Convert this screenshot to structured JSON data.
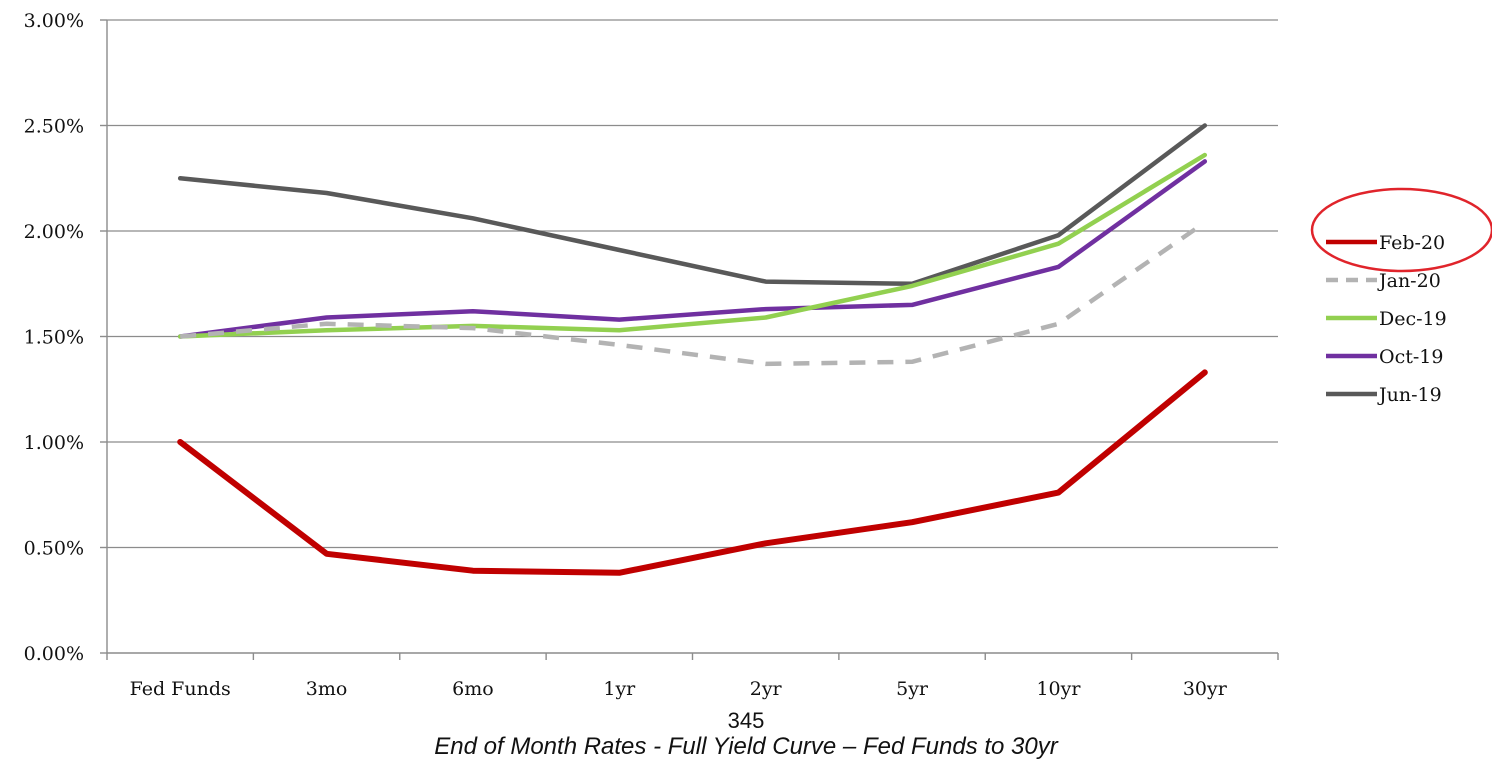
{
  "page_number": "345",
  "caption": "End of Month Rates - Full Yield Curve – Fed Funds to 30yr",
  "highlight": {
    "series": "Feb-20",
    "color": "#e0242b"
  },
  "chart_data": {
    "type": "line",
    "categories": [
      "Fed Funds",
      "3mo",
      "6mo",
      "1yr",
      "2yr",
      "5yr",
      "10yr",
      "30yr"
    ],
    "y_ticks": [
      "0.00%",
      "0.50%",
      "1.00%",
      "1.50%",
      "2.00%",
      "2.50%",
      "3.00%"
    ],
    "ylim": [
      0,
      3
    ],
    "grid": true,
    "legend_position": "right",
    "series": [
      {
        "name": "Feb-20",
        "color": "#c00000",
        "dash": false,
        "values": [
          1.0,
          0.47,
          0.39,
          0.38,
          0.52,
          0.62,
          0.76,
          1.33
        ]
      },
      {
        "name": "Jan-20",
        "color": "#b3b3b3",
        "dash": true,
        "values": [
          1.5,
          1.56,
          1.54,
          1.46,
          1.37,
          1.38,
          1.56,
          2.04
        ]
      },
      {
        "name": "Dec-19",
        "color": "#92d050",
        "dash": false,
        "values": [
          1.5,
          1.53,
          1.55,
          1.53,
          1.59,
          1.74,
          1.94,
          2.36
        ]
      },
      {
        "name": "Oct-19",
        "color": "#7030a0",
        "dash": false,
        "values": [
          1.5,
          1.59,
          1.62,
          1.58,
          1.63,
          1.65,
          1.83,
          2.33
        ]
      },
      {
        "name": "Jun-19",
        "color": "#595959",
        "dash": false,
        "values": [
          2.25,
          2.18,
          2.06,
          1.91,
          1.76,
          1.75,
          1.98,
          2.5
        ]
      }
    ]
  }
}
